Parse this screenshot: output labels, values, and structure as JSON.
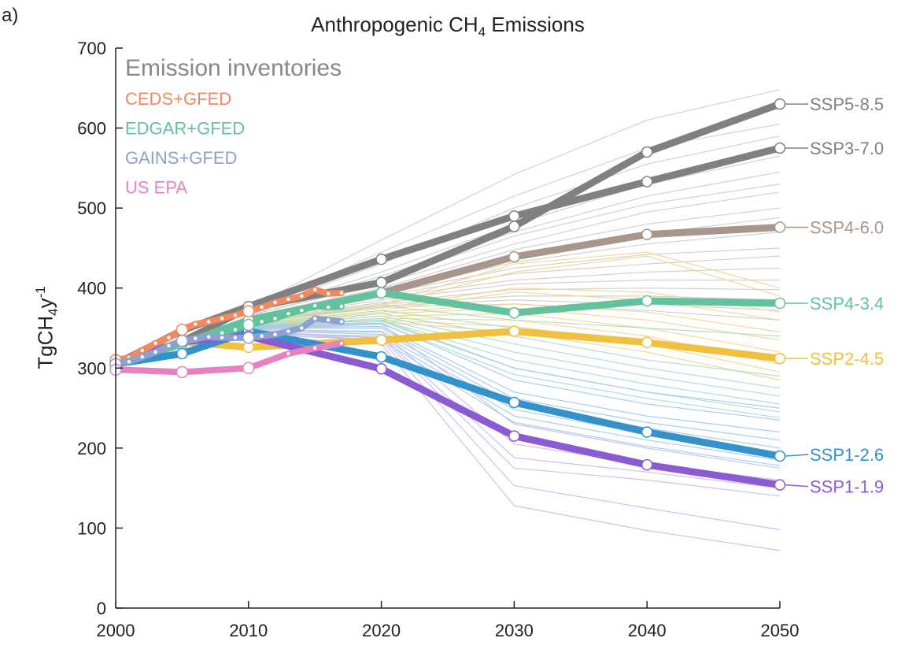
{
  "panel_label": "a)",
  "title": {
    "prefix": "Anthropogenic CH",
    "sub": "4",
    "suffix": " Emissions"
  },
  "ylabel": {
    "prefix": "TgCH",
    "sub": "4",
    "mid": "y",
    "sup": "-1"
  },
  "chart_data": {
    "type": "line",
    "xlim": [
      2000,
      2050
    ],
    "ylim": [
      0,
      700
    ],
    "xticks": [
      2000,
      2010,
      2020,
      2030,
      2040,
      2050
    ],
    "yticks": [
      0,
      100,
      200,
      300,
      400,
      500,
      600,
      700
    ],
    "grid": false,
    "legend": {
      "placement": "top-left",
      "title": "Emission inventories",
      "title_color": "#888888",
      "entries": [
        {
          "label": "CEDS+GFED",
          "color": "#f4895f"
        },
        {
          "label": "EDGAR+GFED",
          "color": "#62c29e"
        },
        {
          "label": "GAINS+GFED",
          "color": "#8e9fd0"
        },
        {
          "label": "US EPA",
          "color": "#e682c0"
        }
      ]
    },
    "inventories": [
      {
        "name": "CEDS+GFED",
        "color": "#f4895f",
        "x": [
          2000,
          2001,
          2002,
          2003,
          2004,
          2005,
          2006,
          2007,
          2008,
          2009,
          2010,
          2011,
          2012,
          2013,
          2014,
          2015,
          2016,
          2017
        ],
        "y": [
          310,
          313,
          322,
          331,
          338,
          348,
          355,
          358,
          362,
          366,
          371,
          376,
          382,
          386,
          390,
          398,
          393,
          394
        ]
      },
      {
        "name": "EDGAR+GFED",
        "color": "#62c29e",
        "x": [
          2000,
          2001,
          2002,
          2003,
          2004,
          2005,
          2006,
          2007,
          2008,
          2009,
          2010,
          2011,
          2012,
          2013,
          2014,
          2015,
          2016,
          2017
        ],
        "y": [
          305,
          309,
          314,
          320,
          326,
          333,
          336,
          340,
          344,
          348,
          354,
          358,
          362,
          368,
          372,
          378,
          376,
          377
        ]
      },
      {
        "name": "GAINS+GFED",
        "color": "#8e9fd0",
        "x": [
          2000,
          2001,
          2002,
          2003,
          2004,
          2005,
          2006,
          2007,
          2008,
          2009,
          2010,
          2011,
          2012,
          2013,
          2014,
          2015,
          2016,
          2017
        ],
        "y": [
          305,
          308,
          314,
          320,
          328,
          334,
          337,
          339,
          338,
          338,
          338,
          340,
          342,
          346,
          350,
          362,
          360,
          358
        ]
      },
      {
        "name": "US EPA",
        "color": "#e682c0",
        "x": [
          2000,
          2005,
          2010,
          2013,
          2015,
          2017
        ],
        "y": [
          298,
          295,
          300,
          318,
          325,
          331
        ]
      }
    ],
    "series": [
      {
        "name": "SSP5-8.5",
        "color": "#808080",
        "label_color": "#808080",
        "x": [
          2000,
          2005,
          2010,
          2020,
          2030,
          2040,
          2050
        ],
        "y": [
          305,
          333,
          375,
          407,
          477,
          570,
          630
        ]
      },
      {
        "name": "SSP3-7.0",
        "color": "#808080",
        "label_color": "#808080",
        "x": [
          2000,
          2005,
          2010,
          2020,
          2030,
          2040,
          2050
        ],
        "y": [
          305,
          347,
          377,
          436,
          490,
          533,
          575
        ]
      },
      {
        "name": "SSP4-6.0",
        "color": "#a8958b",
        "label_color": "#a8958b",
        "x": [
          2000,
          2005,
          2010,
          2020,
          2030,
          2040,
          2050
        ],
        "y": [
          305,
          330,
          360,
          394,
          439,
          467,
          476
        ]
      },
      {
        "name": "SSP4-3.4",
        "color": "#62c29e",
        "label_color": "#62c29e",
        "x": [
          2000,
          2005,
          2010,
          2020,
          2030,
          2040,
          2050
        ],
        "y": [
          305,
          330,
          360,
          394,
          369,
          384,
          381
        ]
      },
      {
        "name": "SSP2-4.5",
        "color": "#f0c040",
        "label_color": "#f0c040",
        "x": [
          2000,
          2005,
          2010,
          2020,
          2030,
          2040,
          2050
        ],
        "y": [
          305,
          333,
          326,
          335,
          346,
          332,
          312
        ]
      },
      {
        "name": "SSP1-2.6",
        "color": "#3391cc",
        "label_color": "#3391cc",
        "x": [
          2000,
          2005,
          2010,
          2020,
          2030,
          2040,
          2050
        ],
        "y": [
          305,
          318,
          346,
          314,
          257,
          220,
          190
        ]
      },
      {
        "name": "SSP1-1.9",
        "color": "#8a5bd2",
        "label_color": "#8a5bd2",
        "x": [
          2000,
          2005,
          2010,
          2020,
          2030,
          2040,
          2050
        ],
        "y": [
          305,
          333,
          340,
          299,
          215,
          179,
          154
        ]
      }
    ],
    "background_scenarios": {
      "x": [
        2010,
        2020,
        2030,
        2040,
        2050
      ],
      "lines": [
        {
          "color": "#cccccc",
          "y": [
            375,
            460,
            542,
            610,
            648
          ]
        },
        {
          "color": "#cccccc",
          "y": [
            372,
            445,
            515,
            575,
            605
          ]
        },
        {
          "color": "#cccccc",
          "y": [
            370,
            430,
            500,
            555,
            590
          ]
        },
        {
          "color": "#cccccc",
          "y": [
            368,
            420,
            480,
            530,
            565
          ]
        },
        {
          "color": "#cccccc",
          "y": [
            367,
            415,
            470,
            515,
            545
          ]
        },
        {
          "color": "#cccccc",
          "y": [
            365,
            410,
            465,
            505,
            530
          ]
        },
        {
          "color": "#cccccc",
          "y": [
            366,
            405,
            455,
            495,
            520
          ]
        },
        {
          "color": "#cccccc",
          "y": [
            364,
            400,
            448,
            480,
            500
          ]
        },
        {
          "color": "#cccccc",
          "y": [
            363,
            398,
            440,
            468,
            488
          ]
        },
        {
          "color": "#cccccc",
          "y": [
            362,
            395,
            432,
            455,
            470
          ]
        },
        {
          "color": "#cccccc",
          "y": [
            362,
            392,
            425,
            442,
            450
          ]
        },
        {
          "color": "#cccccc",
          "y": [
            361,
            390,
            418,
            430,
            440
          ]
        },
        {
          "color": "#cccccc",
          "y": [
            360,
            388,
            410,
            420,
            425
          ]
        },
        {
          "color": "#cccccc",
          "y": [
            360,
            385,
            405,
            410,
            410
          ]
        },
        {
          "color": "#cccccc",
          "y": [
            359,
            382,
            398,
            400,
            398
          ]
        },
        {
          "color": "#cccccc",
          "y": [
            358,
            380,
            390,
            390,
            385
          ]
        },
        {
          "color": "#cccccc",
          "y": [
            358,
            378,
            385,
            380,
            372
          ]
        },
        {
          "color": "#cccccc",
          "y": [
            357,
            376,
            380,
            372,
            360
          ]
        },
        {
          "color": "#f2d58a",
          "y": [
            358,
            380,
            430,
            445,
            400
          ]
        },
        {
          "color": "#f2d58a",
          "y": [
            356,
            378,
            420,
            440,
            390
          ]
        },
        {
          "color": "#f2d58a",
          "y": [
            356,
            375,
            400,
            395,
            370
          ]
        },
        {
          "color": "#f2d58a",
          "y": [
            355,
            372,
            395,
            385,
            360
          ]
        },
        {
          "color": "#f2d58a",
          "y": [
            354,
            370,
            380,
            370,
            345
          ]
        },
        {
          "color": "#f2d58a",
          "y": [
            353,
            368,
            375,
            360,
            335
          ]
        },
        {
          "color": "#f2d58a",
          "y": [
            352,
            365,
            368,
            350,
            320
          ]
        },
        {
          "color": "#f2d58a",
          "y": [
            352,
            362,
            360,
            340,
            305
          ]
        },
        {
          "color": "#f2d58a",
          "y": [
            351,
            360,
            352,
            330,
            295
          ]
        },
        {
          "color": "#f2d58a",
          "y": [
            350,
            358,
            345,
            320,
            285
          ]
        },
        {
          "color": "#a8dcc6",
          "y": [
            356,
            378,
            360,
            350,
            340
          ]
        },
        {
          "color": "#a8dcc6",
          "y": [
            355,
            372,
            350,
            330,
            315
          ]
        },
        {
          "color": "#a8dcc6",
          "y": [
            354,
            368,
            340,
            310,
            290
          ]
        },
        {
          "color": "#a8dcc6",
          "y": [
            353,
            365,
            330,
            300,
            275
          ]
        },
        {
          "color": "#a8dcc6",
          "y": [
            352,
            362,
            320,
            290,
            265
          ]
        },
        {
          "color": "#a8dcc6",
          "y": [
            351,
            360,
            310,
            280,
            255
          ]
        },
        {
          "color": "#a8dcc6",
          "y": [
            350,
            358,
            300,
            270,
            245
          ]
        },
        {
          "color": "#a8dcc6",
          "y": [
            350,
            355,
            292,
            262,
            238
          ]
        },
        {
          "color": "#9ccbe8",
          "y": [
            352,
            360,
            300,
            270,
            250
          ]
        },
        {
          "color": "#9ccbe8",
          "y": [
            351,
            356,
            285,
            255,
            235
          ]
        },
        {
          "color": "#9ccbe8",
          "y": [
            350,
            352,
            270,
            240,
            220
          ]
        },
        {
          "color": "#9ccbe8",
          "y": [
            349,
            350,
            262,
            232,
            210
          ]
        },
        {
          "color": "#9ccbe8",
          "y": [
            348,
            346,
            255,
            225,
            200
          ]
        },
        {
          "color": "#9ccbe8",
          "y": [
            347,
            342,
            248,
            218,
            192
          ]
        },
        {
          "color": "#9ccbe8",
          "y": [
            346,
            338,
            240,
            210,
            185
          ]
        },
        {
          "color": "#9ccbe8",
          "y": [
            345,
            335,
            232,
            202,
            178
          ]
        },
        {
          "color": "#c9b8ee",
          "y": [
            348,
            355,
            230,
            200,
            175
          ]
        },
        {
          "color": "#c9b8ee",
          "y": [
            346,
            345,
            205,
            180,
            160
          ]
        },
        {
          "color": "#c9b8ee",
          "y": [
            344,
            340,
            188,
            170,
            150
          ]
        },
        {
          "color": "#c9b8ee",
          "y": [
            343,
            338,
            175,
            160,
            140
          ]
        },
        {
          "color": "#c9b8ee",
          "y": [
            342,
            335,
            153,
            125,
            98
          ]
        },
        {
          "color": "#c9b8ee",
          "y": [
            340,
            330,
            128,
            97,
            72
          ]
        }
      ]
    }
  }
}
